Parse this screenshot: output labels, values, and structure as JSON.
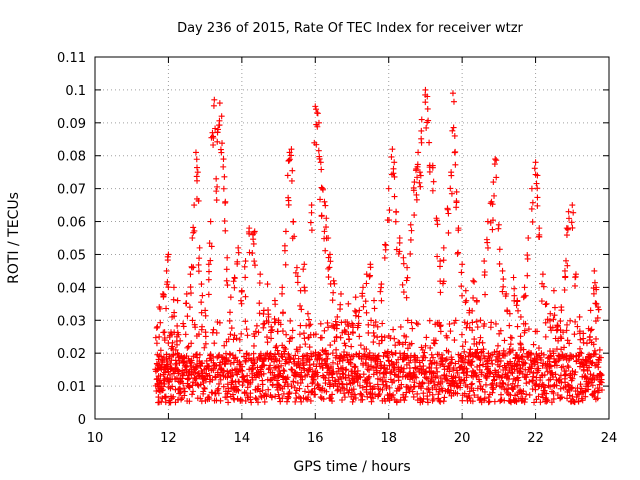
{
  "chart_data": {
    "type": "scatter",
    "title": "Day 236 of 2015, Rate Of TEC Index for receiver wtzr",
    "xlabel": "GPS time / hours",
    "ylabel": "ROTI / TECUs",
    "xlim": [
      10,
      24
    ],
    "ylim": [
      0,
      0.11
    ],
    "xticks": [
      10,
      12,
      14,
      16,
      18,
      20,
      22,
      24
    ],
    "xtick_labels": [
      "10",
      "12",
      "14",
      "16",
      "18",
      "20",
      "22",
      "24"
    ],
    "yticks": [
      0,
      0.01,
      0.02,
      0.03,
      0.04,
      0.05,
      0.06,
      0.07,
      0.08,
      0.09,
      0.1,
      0.11
    ],
    "ytick_labels": [
      "0",
      "0.01",
      "0.02",
      "0.03",
      "0.04",
      "0.05",
      "0.06",
      "0.07",
      "0.08",
      "0.09",
      "0.1",
      "0.11"
    ],
    "grid": true,
    "marker": "+",
    "color": "#ff0000",
    "series": [
      {
        "name": "ROTI",
        "points": [
          [
            11.7,
            0.015
          ],
          [
            11.7,
            0.028
          ],
          [
            11.75,
            0.034
          ],
          [
            11.8,
            0.019
          ],
          [
            11.85,
            0.038
          ],
          [
            11.9,
            0.024
          ],
          [
            11.95,
            0.045
          ],
          [
            12.0,
            0.05
          ],
          [
            12.05,
            0.012
          ],
          [
            12.1,
            0.031
          ],
          [
            12.15,
            0.04
          ],
          [
            12.2,
            0.021
          ],
          [
            12.25,
            0.036
          ],
          [
            12.3,
            0.017
          ],
          [
            12.4,
            0.029
          ],
          [
            12.5,
            0.038
          ],
          [
            12.55,
            0.022
          ],
          [
            12.6,
            0.044
          ],
          [
            12.65,
            0.055
          ],
          [
            12.7,
            0.065
          ],
          [
            12.75,
            0.081
          ],
          [
            12.8,
            0.075
          ],
          [
            12.85,
            0.052
          ],
          [
            12.9,
            0.041
          ],
          [
            13.0,
            0.033
          ],
          [
            13.1,
            0.047
          ],
          [
            13.15,
            0.06
          ],
          [
            13.2,
            0.087
          ],
          [
            13.25,
            0.097
          ],
          [
            13.3,
            0.073
          ],
          [
            13.35,
            0.088
          ],
          [
            13.4,
            0.096
          ],
          [
            13.45,
            0.092
          ],
          [
            13.5,
            0.079
          ],
          [
            13.55,
            0.066
          ],
          [
            13.6,
            0.049
          ],
          [
            13.7,
            0.037
          ],
          [
            13.8,
            0.043
          ],
          [
            13.9,
            0.052
          ],
          [
            14.0,
            0.039
          ],
          [
            14.1,
            0.048
          ],
          [
            14.2,
            0.058
          ],
          [
            14.3,
            0.056
          ],
          [
            14.35,
            0.057
          ],
          [
            14.5,
            0.044
          ],
          [
            14.6,
            0.033
          ],
          [
            14.7,
            0.041
          ],
          [
            14.8,
            0.028
          ],
          [
            14.9,
            0.036
          ],
          [
            15.0,
            0.03
          ],
          [
            15.1,
            0.04
          ],
          [
            15.2,
            0.057
          ],
          [
            15.25,
            0.074
          ],
          [
            15.3,
            0.081
          ],
          [
            15.35,
            0.082
          ],
          [
            15.4,
            0.06
          ],
          [
            15.5,
            0.046
          ],
          [
            15.6,
            0.039
          ],
          [
            15.7,
            0.047
          ],
          [
            15.8,
            0.032
          ],
          [
            15.9,
            0.065
          ],
          [
            16.0,
            0.095
          ],
          [
            16.05,
            0.093
          ],
          [
            16.1,
            0.09
          ],
          [
            16.15,
            0.078
          ],
          [
            16.2,
            0.07
          ],
          [
            16.25,
            0.066
          ],
          [
            16.3,
            0.061
          ],
          [
            16.35,
            0.055
          ],
          [
            16.4,
            0.05
          ],
          [
            16.5,
            0.042
          ],
          [
            16.6,
            0.031
          ],
          [
            16.7,
            0.038
          ],
          [
            16.8,
            0.027
          ],
          [
            16.9,
            0.035
          ],
          [
            17.0,
            0.029
          ],
          [
            17.1,
            0.037
          ],
          [
            17.2,
            0.033
          ],
          [
            17.3,
            0.04
          ],
          [
            17.4,
            0.044
          ],
          [
            17.5,
            0.047
          ],
          [
            17.6,
            0.036
          ],
          [
            17.7,
            0.028
          ],
          [
            17.8,
            0.041
          ],
          [
            17.9,
            0.053
          ],
          [
            18.0,
            0.07
          ],
          [
            18.1,
            0.082
          ],
          [
            18.15,
            0.078
          ],
          [
            18.2,
            0.063
          ],
          [
            18.3,
            0.055
          ],
          [
            18.4,
            0.049
          ],
          [
            18.5,
            0.046
          ],
          [
            18.6,
            0.059
          ],
          [
            18.7,
            0.072
          ],
          [
            18.75,
            0.076
          ],
          [
            18.8,
            0.081
          ],
          [
            18.85,
            0.075
          ],
          [
            18.9,
            0.091
          ],
          [
            19.0,
            0.1
          ],
          [
            19.05,
            0.098
          ],
          [
            19.1,
            0.084
          ],
          [
            19.2,
            0.077
          ],
          [
            19.3,
            0.061
          ],
          [
            19.4,
            0.048
          ],
          [
            19.5,
            0.052
          ],
          [
            19.6,
            0.064
          ],
          [
            19.7,
            0.075
          ],
          [
            19.75,
            0.099
          ],
          [
            19.8,
            0.086
          ],
          [
            19.85,
            0.069
          ],
          [
            19.9,
            0.058
          ],
          [
            20.0,
            0.047
          ],
          [
            20.1,
            0.039
          ],
          [
            20.2,
            0.033
          ],
          [
            20.3,
            0.042
          ],
          [
            20.4,
            0.036
          ],
          [
            20.5,
            0.03
          ],
          [
            20.6,
            0.048
          ],
          [
            20.7,
            0.06
          ],
          [
            20.8,
            0.066
          ],
          [
            20.85,
            0.072
          ],
          [
            20.9,
            0.079
          ],
          [
            21.0,
            0.059
          ],
          [
            21.1,
            0.045
          ],
          [
            21.2,
            0.038
          ],
          [
            21.3,
            0.032
          ],
          [
            21.4,
            0.043
          ],
          [
            21.5,
            0.036
          ],
          [
            21.6,
            0.031
          ],
          [
            21.7,
            0.04
          ],
          [
            21.8,
            0.055
          ],
          [
            21.9,
            0.07
          ],
          [
            22.0,
            0.078
          ],
          [
            22.05,
            0.074
          ],
          [
            22.1,
            0.058
          ],
          [
            22.2,
            0.044
          ],
          [
            22.3,
            0.035
          ],
          [
            22.4,
            0.032
          ],
          [
            22.5,
            0.039
          ],
          [
            22.6,
            0.028
          ],
          [
            22.7,
            0.034
          ],
          [
            22.8,
            0.045
          ],
          [
            22.85,
            0.058
          ],
          [
            22.9,
            0.063
          ],
          [
            23.0,
            0.065
          ],
          [
            23.1,
            0.044
          ],
          [
            23.2,
            0.031
          ],
          [
            23.3,
            0.026
          ],
          [
            23.4,
            0.023
          ],
          [
            23.5,
            0.033
          ],
          [
            23.6,
            0.045
          ],
          [
            23.65,
            0.04
          ],
          [
            23.7,
            0.034
          ],
          [
            23.75,
            0.021
          ]
        ],
        "background_cloud": {
          "x_start": 11.65,
          "x_end": 23.8,
          "x_step": 0.025,
          "y_range": [
            0.005,
            0.03
          ],
          "typical": 0.012
        }
      }
    ]
  }
}
